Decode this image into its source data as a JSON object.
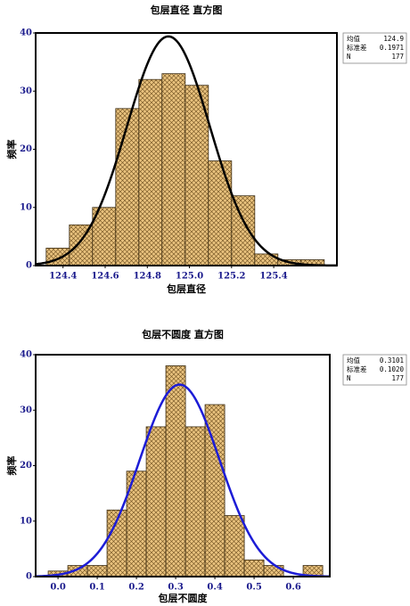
{
  "chart_data": [
    {
      "type": "histogram",
      "title": "包层直径  直方图",
      "x_label": "包层直径",
      "y_label": "频率",
      "bins": [
        124.32,
        124.43,
        124.54,
        124.65,
        124.76,
        124.87,
        124.98,
        125.09,
        125.2,
        125.31,
        125.42,
        125.53,
        125.64
      ],
      "values": [
        3,
        7,
        10,
        27,
        32,
        33,
        31,
        18,
        12,
        2,
        1,
        1
      ],
      "color": "#e9c27e",
      "curve_color": "#000000",
      "xlim": [
        124.27,
        125.7
      ],
      "ylim": [
        0,
        40
      ],
      "xticks": [
        124.4,
        124.6,
        124.8,
        {
          "value": 125.0,
          "label": "125.0"
        },
        125.2,
        125.4
      ],
      "yticks": [
        0,
        10,
        20,
        30,
        40
      ],
      "stats": {
        "names": [
          "均值",
          "标准差",
          "N"
        ],
        "values": [
          124.9,
          0.1971,
          177
        ],
        "value_labels": [
          "124.9",
          "0.1971",
          "177"
        ]
      }
    },
    {
      "type": "histogram",
      "title": "包层不圆度  直方图",
      "x_label": "包层不圆度",
      "y_label": "频率",
      "bins": [
        -0.025,
        0.025,
        0.075,
        0.125,
        0.175,
        0.225,
        0.275,
        0.325,
        0.375,
        0.425,
        0.475,
        0.525,
        0.575,
        0.625,
        0.675
      ],
      "values": [
        1,
        2,
        2,
        12,
        19,
        27,
        38,
        27,
        31,
        11,
        3,
        2,
        0,
        2
      ],
      "color": "#e9c27e",
      "curve_color": "#1c1cd6",
      "xlim": [
        -0.057,
        0.693
      ],
      "ylim": [
        0,
        40
      ],
      "xticks": [
        {
          "value": 0,
          "label": "0.0"
        },
        0.1,
        0.2,
        0.3,
        0.4,
        0.5,
        0.6
      ],
      "yticks": [
        0,
        10,
        20,
        30,
        40
      ],
      "stats": {
        "names": [
          "均值",
          "标准差",
          "N"
        ],
        "values": [
          0.3101,
          0.102,
          177
        ],
        "value_labels": [
          "0.3101",
          "0.1020",
          "177"
        ]
      }
    }
  ]
}
